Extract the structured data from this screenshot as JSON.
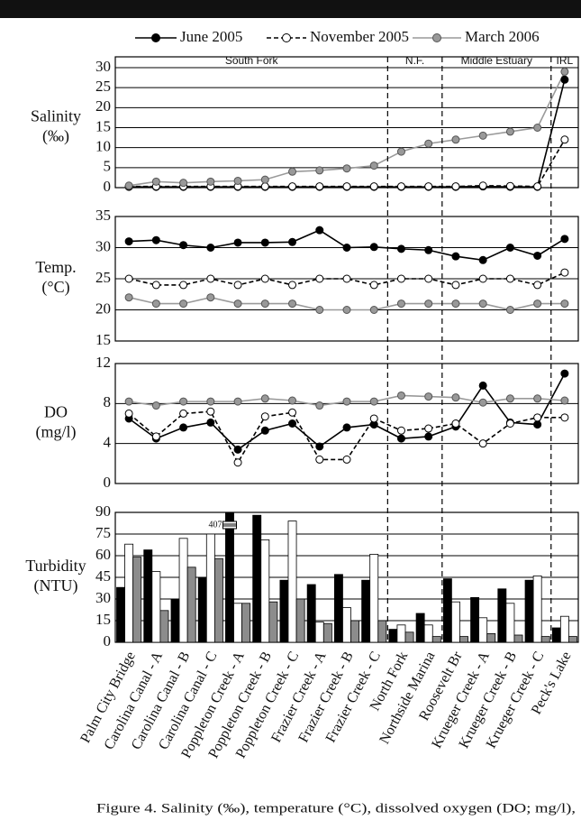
{
  "caption": "Figure 4.  Salinity (‰), temperature (°C), dissolved oxygen (DO; mg/l),",
  "chart_data": [
    {
      "type": "line",
      "ylabel": [
        "Salinity",
        "(‰)"
      ],
      "ylim": [
        0,
        30
      ],
      "yticks": [
        0,
        5,
        10,
        15,
        20,
        25,
        30
      ],
      "grid": true,
      "annotations": [
        "South Fork",
        "N.F.",
        "Middle Estuary",
        "IRL"
      ],
      "series": [
        {
          "name": "June 2005",
          "color": "#000000",
          "line_color": "#000000",
          "dash": false,
          "values": [
            0.2,
            0.2,
            0.2,
            0.2,
            0.2,
            0.2,
            0.2,
            0.2,
            0.2,
            0.2,
            0.2,
            0.2,
            0.2,
            0.3,
            0.2,
            0.2,
            27
          ]
        },
        {
          "name": "November 2005",
          "color": "#ffffff",
          "line_color": "#000000",
          "dash": true,
          "values": [
            0.3,
            0.3,
            0.3,
            0.3,
            0.3,
            0.3,
            0.3,
            0.3,
            0.3,
            0.3,
            0.3,
            0.3,
            0.3,
            0.5,
            0.4,
            0.3,
            12
          ]
        },
        {
          "name": "March 2006",
          "color": "#999999",
          "line_color": "#9a9a9a",
          "dash": false,
          "values": [
            0.5,
            1.5,
            1.2,
            1.5,
            1.7,
            2,
            4,
            4.3,
            4.8,
            5.5,
            9,
            11,
            12,
            13,
            14,
            15,
            29
          ]
        }
      ]
    },
    {
      "type": "line",
      "ylabel": [
        "Temp.",
        "(°C)"
      ],
      "ylim": [
        15,
        35
      ],
      "yticks": [
        15,
        20,
        25,
        30,
        35
      ],
      "grid": true,
      "series": [
        {
          "color": "#000000",
          "line_color": "#000000",
          "dash": false,
          "values": [
            31,
            31.2,
            30.4,
            30,
            30.8,
            30.8,
            30.9,
            32.8,
            30,
            30.1,
            29.8,
            29.6,
            28.6,
            28,
            30,
            28.7,
            31.4
          ]
        },
        {
          "color": "#ffffff",
          "line_color": "#000000",
          "dash": true,
          "values": [
            25,
            24,
            24,
            25,
            24,
            25,
            24,
            25,
            25,
            24,
            25,
            25,
            24,
            25,
            25,
            24,
            26
          ]
        },
        {
          "color": "#999999",
          "line_color": "#9a9a9a",
          "dash": false,
          "values": [
            22,
            21,
            21,
            22,
            21,
            21,
            21,
            20,
            20,
            20,
            21,
            21,
            21,
            21,
            20,
            21,
            21
          ]
        }
      ]
    },
    {
      "type": "line",
      "ylabel": [
        "DO",
        "(mg/l)"
      ],
      "ylim": [
        0,
        12
      ],
      "yticks": [
        0,
        4,
        8,
        12
      ],
      "grid": true,
      "series": [
        {
          "color": "#000000",
          "line_color": "#000000",
          "dash": false,
          "values": [
            6.5,
            4.5,
            5.6,
            6.1,
            3.4,
            5.3,
            6,
            3.7,
            5.6,
            5.9,
            4.5,
            4.7,
            5.7,
            9.8,
            6.1,
            5.9,
            11
          ]
        },
        {
          "color": "#ffffff",
          "line_color": "#000000",
          "dash": true,
          "values": [
            7,
            4.7,
            7,
            7.2,
            2.1,
            6.7,
            7.1,
            2.4,
            2.4,
            6.5,
            5.3,
            5.5,
            6,
            4,
            6,
            6.6,
            6.6
          ]
        },
        {
          "color": "#999999",
          "line_color": "#9a9a9a",
          "dash": false,
          "values": [
            8.2,
            7.8,
            8.2,
            8.2,
            8.2,
            8.5,
            8.3,
            7.8,
            8.2,
            8.2,
            8.8,
            8.7,
            8.6,
            8.1,
            8.5,
            8.5,
            8.3
          ]
        }
      ]
    },
    {
      "type": "bar",
      "ylabel": [
        "Turbidity",
        "(NTU)"
      ],
      "ylim": [
        0,
        90
      ],
      "yticks": [
        0,
        15,
        30,
        45,
        60,
        75,
        90
      ],
      "grid": true,
      "categories": [
        "Palm City Bridge",
        "Carolina Canal - A",
        "Carolina Canal - B",
        "Carolina Canal - C",
        "Poppleton Creek - A",
        "Poppleton Creek - B",
        "Poppleton Creek - C",
        "Frazier Creek - A",
        "Frazier Creek - B",
        "Frazier Creek - C",
        "North Fork",
        "Northside Marina",
        "Roosevelt Br",
        "Krueger Creek - A",
        "Krueger Creek - B",
        "Krueger Creek - C",
        "Peck's Lake"
      ],
      "series": [
        {
          "color": "#000000",
          "values": [
            38,
            64,
            30,
            45,
            407,
            88,
            43,
            40,
            47,
            43,
            9,
            20,
            44,
            31,
            37,
            43,
            10
          ],
          "value_labels": [
            null,
            null,
            null,
            null,
            "407",
            null,
            null,
            null,
            null,
            null,
            null,
            null,
            null,
            null,
            null,
            null,
            null
          ]
        },
        {
          "color": "#ffffff",
          "values": [
            68,
            49,
            72,
            75,
            27,
            71,
            84,
            14,
            24,
            61,
            12,
            12,
            28,
            17,
            27,
            46,
            18
          ]
        },
        {
          "color": "#8c8c8c",
          "values": [
            59,
            22,
            52,
            58,
            27,
            28,
            30,
            13,
            15,
            15,
            7,
            4,
            4,
            6,
            5,
            4,
            4
          ]
        }
      ]
    }
  ]
}
